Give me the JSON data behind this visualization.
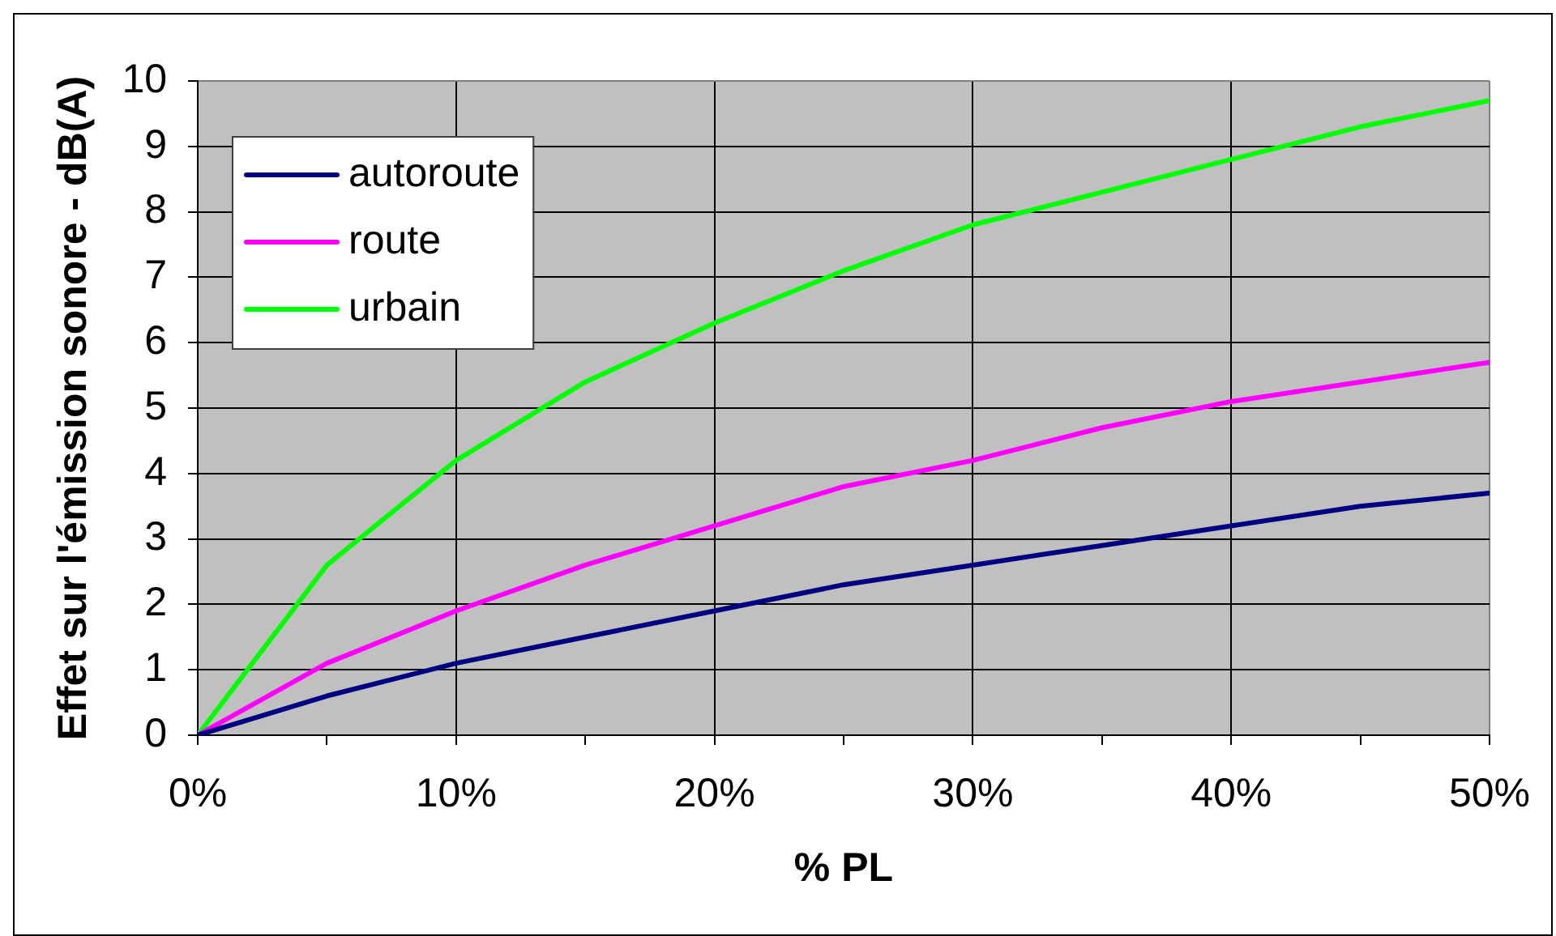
{
  "chart_data": {
    "type": "line",
    "xlabel": "% PL",
    "ylabel": "Effet sur l'émission sonore - dB(A)",
    "x": [
      0,
      5,
      10,
      15,
      20,
      25,
      30,
      35,
      40,
      45,
      50
    ],
    "series": [
      {
        "name": "autoroute",
        "color": "#000080",
        "values": [
          0,
          0.6,
          1.1,
          1.5,
          1.9,
          2.3,
          2.6,
          2.9,
          3.2,
          3.5,
          3.7
        ]
      },
      {
        "name": "route",
        "color": "#ff00ff",
        "values": [
          0,
          1.1,
          1.9,
          2.6,
          3.2,
          3.8,
          4.2,
          4.7,
          5.1,
          5.4,
          5.7
        ]
      },
      {
        "name": "urbain",
        "color": "#00ff00",
        "values": [
          0,
          2.6,
          4.2,
          5.4,
          6.3,
          7.1,
          7.8,
          8.3,
          8.8,
          9.3,
          9.7
        ]
      }
    ],
    "xlim": [
      0,
      50
    ],
    "xticks": [
      {
        "value": 0,
        "label": "0%"
      },
      {
        "value": 5,
        "label": null
      },
      {
        "value": 10,
        "label": "10%"
      },
      {
        "value": 15,
        "label": null
      },
      {
        "value": 20,
        "label": "20%"
      },
      {
        "value": 25,
        "label": null
      },
      {
        "value": 30,
        "label": "30%"
      },
      {
        "value": 35,
        "label": null
      },
      {
        "value": 40,
        "label": "40%"
      },
      {
        "value": 45,
        "label": null
      },
      {
        "value": 50,
        "label": "50%"
      }
    ],
    "ylim": [
      0,
      10
    ],
    "yticks": [
      0,
      1,
      2,
      3,
      4,
      5,
      6,
      7,
      8,
      9,
      10
    ],
    "grid": true,
    "legend": "top left",
    "marker": "none",
    "line_style": "solid"
  }
}
